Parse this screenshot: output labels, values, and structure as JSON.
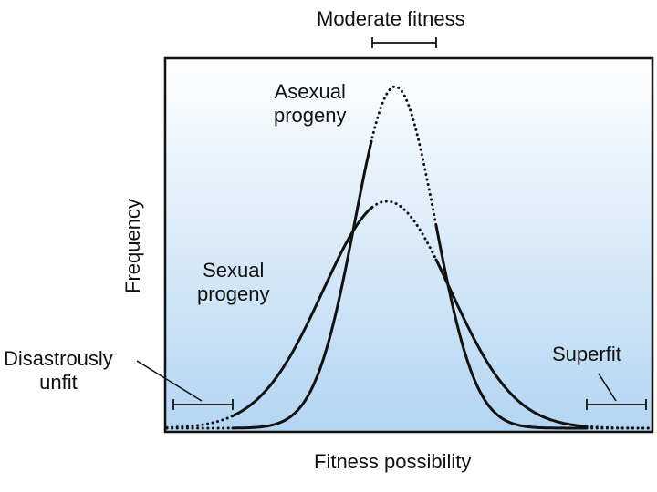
{
  "labels": {
    "top": "Moderate fitness",
    "x_axis": "Fitness possibility",
    "y_axis": "Frequency",
    "asexual": [
      "Asexual",
      "progeny"
    ],
    "sexual": [
      "Sexual",
      "progeny"
    ],
    "unfit": [
      "Disastrously",
      "unfit"
    ],
    "superfit": "Superfit"
  },
  "colors": {
    "curve": "#111111",
    "gradient_top": "#ffffff",
    "gradient_bottom": "#b3d5f2",
    "frame": "#111111"
  }
}
